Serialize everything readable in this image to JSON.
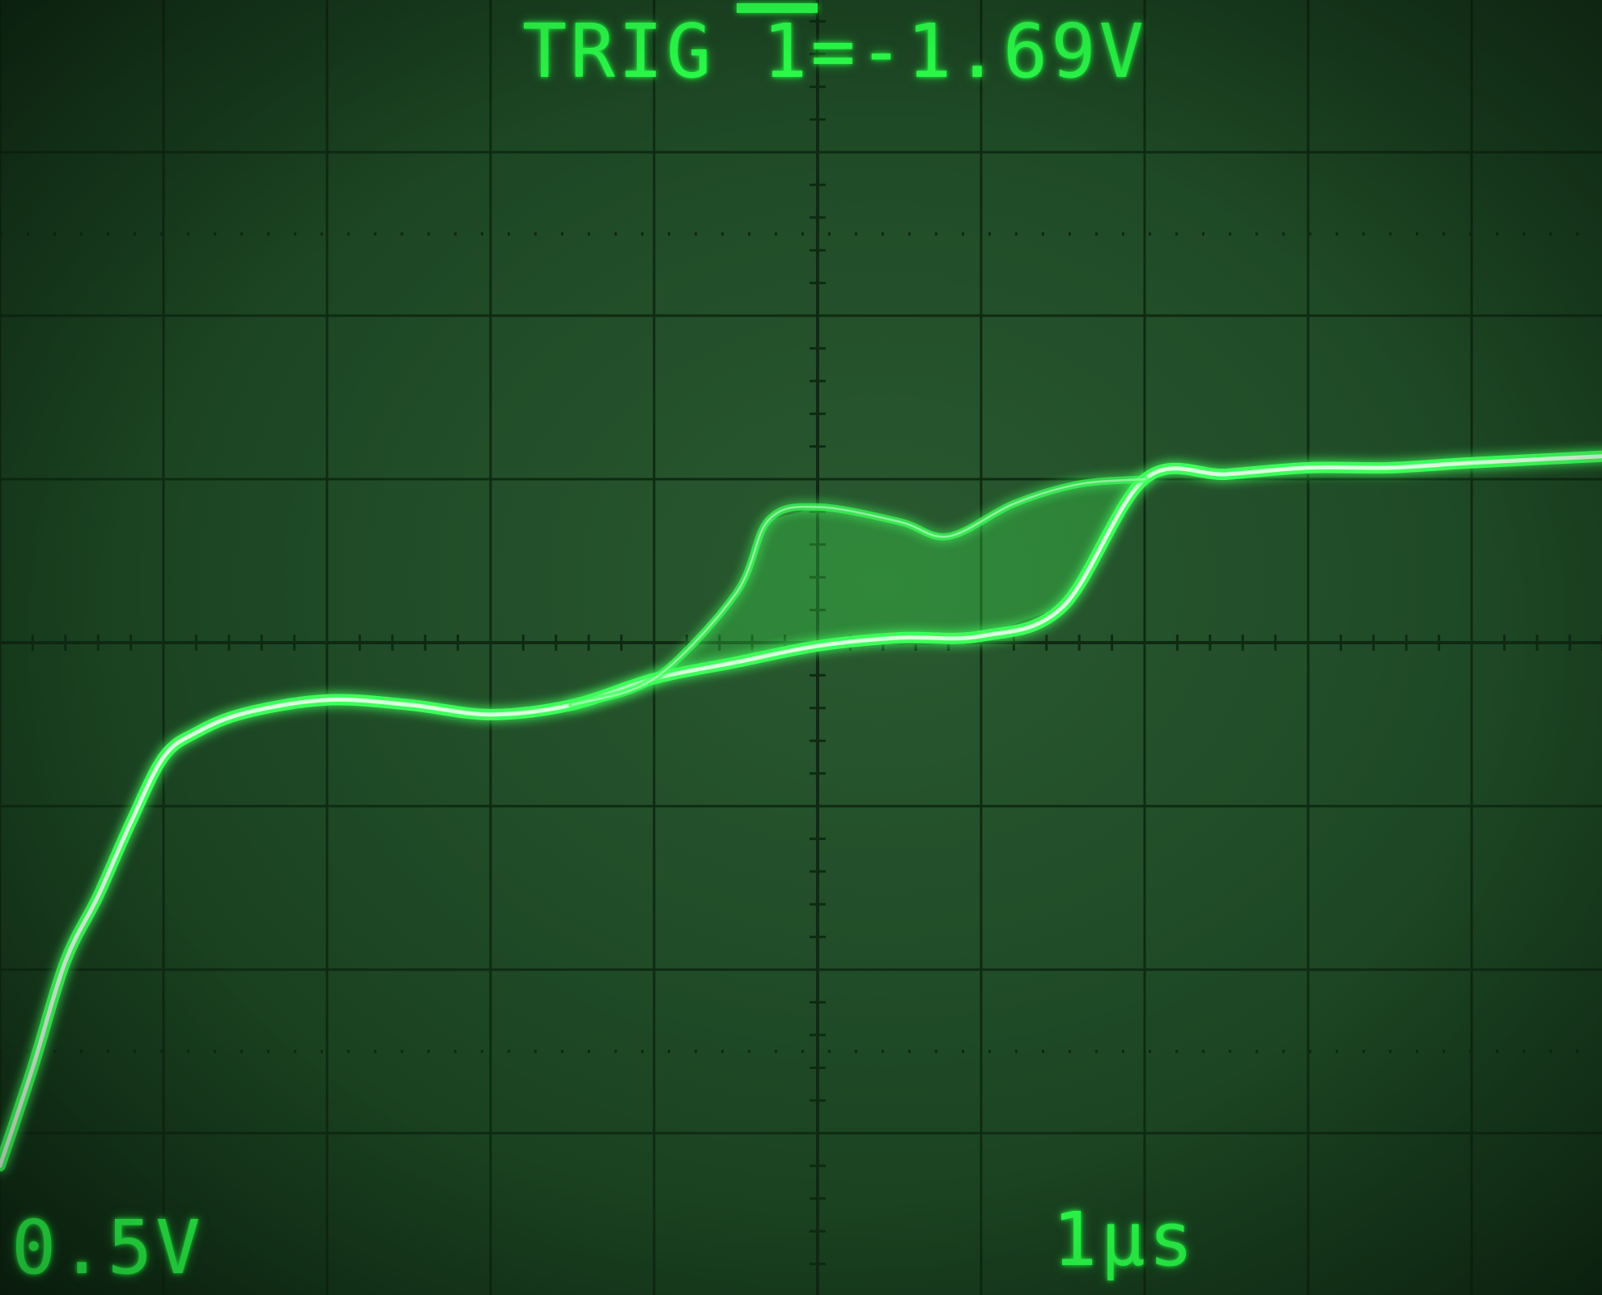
{
  "screen": {
    "trigger_readout": "TRIG 1=-1.69V",
    "vertical_scale": "0.5V",
    "time_scale": "1µs"
  },
  "colors": {
    "background": "#1f4a26",
    "graticule": "#0f2a13",
    "trace": "#3dff5a",
    "trace_core": "#e8ffea",
    "text": "#2bff4a"
  },
  "chart_data": {
    "type": "line",
    "grid": true,
    "divisions": {
      "x": 10,
      "y": 8
    },
    "x_units": "divisions (1µs/div)",
    "y_units": "divisions (0.5V/div), 0 = center",
    "series": [
      {
        "points": [
          [
            0.0,
            -3.2
          ],
          [
            0.2,
            -2.6
          ],
          [
            0.4,
            -1.95
          ],
          [
            0.6,
            -1.55
          ],
          [
            0.8,
            -1.1
          ],
          [
            1.0,
            -0.7
          ],
          [
            1.2,
            -0.55
          ],
          [
            1.5,
            -0.43
          ],
          [
            2.0,
            -0.35
          ],
          [
            2.5,
            -0.38
          ],
          [
            3.0,
            -0.44
          ],
          [
            3.5,
            -0.38
          ],
          [
            4.0,
            -0.22
          ],
          [
            4.5,
            -0.12
          ],
          [
            5.0,
            -0.02
          ],
          [
            5.5,
            0.03
          ],
          [
            6.0,
            0.04
          ],
          [
            6.5,
            0.22
          ],
          [
            7.0,
            1.0
          ],
          [
            7.5,
            1.03
          ],
          [
            8.0,
            1.07
          ],
          [
            8.5,
            1.07
          ],
          [
            9.0,
            1.1
          ],
          [
            10.0,
            1.15
          ]
        ]
      },
      {
        "points": [
          [
            3.5,
            -0.38
          ],
          [
            4.0,
            -0.22
          ],
          [
            4.5,
            0.3
          ],
          [
            4.7,
            0.75
          ],
          [
            5.0,
            0.83
          ],
          [
            5.5,
            0.74
          ],
          [
            5.8,
            0.65
          ],
          [
            6.2,
            0.85
          ],
          [
            6.6,
            0.97
          ],
          [
            7.0,
            1.0
          ]
        ]
      }
    ]
  }
}
